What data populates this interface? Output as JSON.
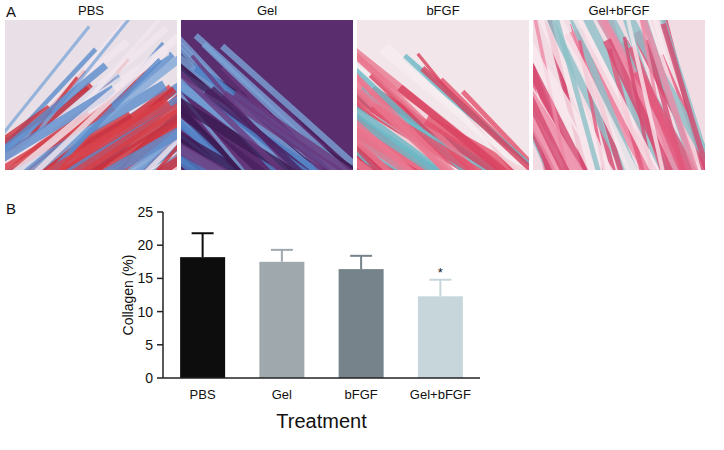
{
  "panel_a": {
    "label": "A",
    "image_titles": [
      "PBS",
      "Gel",
      "bFGF",
      "Gel+bFGF"
    ]
  },
  "panel_b_label": "B",
  "chart_data": {
    "type": "bar",
    "categories": [
      "PBS",
      "Gel",
      "bFGF",
      "Gel+bFGF"
    ],
    "values": [
      18.2,
      17.5,
      16.4,
      12.3
    ],
    "errors": [
      3.6,
      1.8,
      2.0,
      2.5
    ],
    "significance": [
      null,
      null,
      null,
      "*"
    ],
    "colors": [
      "#0d0d0d",
      "#9ea8ad",
      "#76838a",
      "#c6d6db"
    ],
    "x_label": "Treatment",
    "y_label": "Collagen (%)",
    "ylim": [
      0,
      25
    ],
    "yticks": [
      0,
      5,
      10,
      15,
      20,
      25
    ],
    "grid": false
  }
}
